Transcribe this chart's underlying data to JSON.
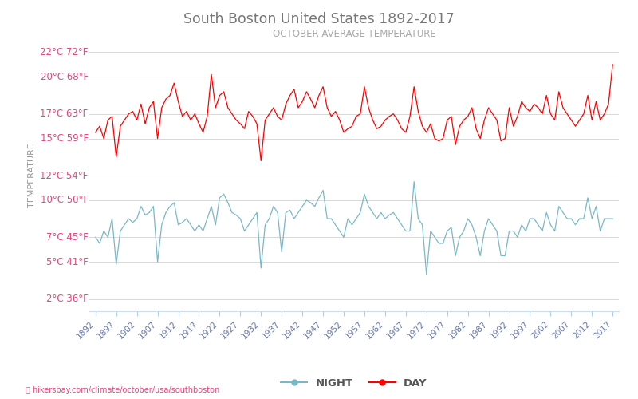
{
  "title": "South Boston United States 1892-2017",
  "subtitle": "OCTOBER AVERAGE TEMPERATURE",
  "ylabel": "TEMPERATURE",
  "url_text": "hikersbay.com/climate/october/usa/southboston",
  "legend_night": "NIGHT",
  "legend_day": "DAY",
  "color_day": "#ff0000",
  "color_night": "#7ab8c8",
  "color_title": "#777777",
  "color_subtitle": "#aaaaaa",
  "color_ytick": "#e8457a",
  "color_xtick": "#6677aa",
  "color_grid": "#d8d8d8",
  "color_ylabel": "#999999",
  "color_legend": "#555555",
  "color_url": "#e8457a",
  "background": "#ffffff",
  "years": [
    1892,
    1893,
    1894,
    1895,
    1896,
    1897,
    1898,
    1899,
    1900,
    1901,
    1902,
    1903,
    1904,
    1905,
    1906,
    1907,
    1908,
    1909,
    1910,
    1911,
    1912,
    1913,
    1914,
    1915,
    1916,
    1917,
    1918,
    1919,
    1920,
    1921,
    1922,
    1923,
    1924,
    1925,
    1926,
    1927,
    1928,
    1929,
    1930,
    1931,
    1932,
    1933,
    1934,
    1935,
    1936,
    1937,
    1938,
    1939,
    1940,
    1941,
    1942,
    1943,
    1944,
    1945,
    1946,
    1947,
    1948,
    1949,
    1950,
    1951,
    1952,
    1953,
    1954,
    1955,
    1956,
    1957,
    1958,
    1959,
    1960,
    1961,
    1962,
    1963,
    1964,
    1965,
    1966,
    1967,
    1968,
    1969,
    1970,
    1971,
    1972,
    1973,
    1974,
    1975,
    1976,
    1977,
    1978,
    1979,
    1980,
    1981,
    1982,
    1983,
    1984,
    1985,
    1986,
    1987,
    1988,
    1989,
    1990,
    1991,
    1992,
    1993,
    1994,
    1995,
    1996,
    1997,
    1998,
    1999,
    2000,
    2001,
    2002,
    2003,
    2004,
    2005,
    2006,
    2007,
    2008,
    2009,
    2010,
    2011,
    2012,
    2013,
    2014,
    2015,
    2016,
    2017
  ],
  "day_temps": [
    15.5,
    16.0,
    15.0,
    16.5,
    16.8,
    13.5,
    16.0,
    16.5,
    17.0,
    17.2,
    16.5,
    17.8,
    16.2,
    17.5,
    18.0,
    15.0,
    17.5,
    18.2,
    18.5,
    19.5,
    18.0,
    16.8,
    17.2,
    16.5,
    17.0,
    16.2,
    15.5,
    16.8,
    20.2,
    17.5,
    18.5,
    18.8,
    17.5,
    17.0,
    16.5,
    16.2,
    15.8,
    17.2,
    16.8,
    16.2,
    13.2,
    16.5,
    17.0,
    17.5,
    16.8,
    16.5,
    17.8,
    18.5,
    19.0,
    17.5,
    18.0,
    18.8,
    18.2,
    17.5,
    18.5,
    19.2,
    17.5,
    16.8,
    17.2,
    16.5,
    15.5,
    15.8,
    16.0,
    16.8,
    17.0,
    19.2,
    17.5,
    16.5,
    15.8,
    16.0,
    16.5,
    16.8,
    17.0,
    16.5,
    15.8,
    15.5,
    16.8,
    19.2,
    17.2,
    16.0,
    15.5,
    16.2,
    15.0,
    14.8,
    15.0,
    16.5,
    16.8,
    14.5,
    16.0,
    16.5,
    16.8,
    17.5,
    15.8,
    15.0,
    16.5,
    17.5,
    17.0,
    16.5,
    14.8,
    15.0,
    17.5,
    16.0,
    16.8,
    18.0,
    17.5,
    17.2,
    17.8,
    17.5,
    17.0,
    18.5,
    17.0,
    16.5,
    18.8,
    17.5,
    17.0,
    16.5,
    16.0,
    16.5,
    17.0,
    18.5,
    16.5,
    18.0,
    16.5,
    17.0,
    17.8,
    21.0
  ],
  "night_temps": [
    7.0,
    6.5,
    7.5,
    7.0,
    8.5,
    4.8,
    7.5,
    8.0,
    8.5,
    8.2,
    8.5,
    9.5,
    8.8,
    9.0,
    9.5,
    5.0,
    8.0,
    9.0,
    9.5,
    9.8,
    8.0,
    8.2,
    8.5,
    8.0,
    7.5,
    8.0,
    7.5,
    8.5,
    9.5,
    8.0,
    10.2,
    10.5,
    9.8,
    9.0,
    8.8,
    8.5,
    7.5,
    8.0,
    8.5,
    9.0,
    4.5,
    8.0,
    8.5,
    9.5,
    9.0,
    5.8,
    9.0,
    9.2,
    8.5,
    9.0,
    9.5,
    10.0,
    9.8,
    9.5,
    10.2,
    10.8,
    8.5,
    8.5,
    8.0,
    7.5,
    7.0,
    8.5,
    8.0,
    8.5,
    9.0,
    10.5,
    9.5,
    9.0,
    8.5,
    9.0,
    8.5,
    8.8,
    9.0,
    8.5,
    8.0,
    7.5,
    7.5,
    11.5,
    8.5,
    8.0,
    4.0,
    7.5,
    7.0,
    6.5,
    6.5,
    7.5,
    7.8,
    5.5,
    7.0,
    7.5,
    8.5,
    8.0,
    7.0,
    5.5,
    7.5,
    8.5,
    8.0,
    7.5,
    5.5,
    5.5,
    7.5,
    7.5,
    7.0,
    8.0,
    7.5,
    8.5,
    8.5,
    8.0,
    7.5,
    9.0,
    8.0,
    7.5,
    9.5,
    9.0,
    8.5,
    8.5,
    8.0,
    8.5,
    8.5,
    10.2,
    8.5,
    9.5,
    7.5,
    8.5,
    8.5,
    8.5
  ],
  "yticks_c": [
    2,
    5,
    7,
    10,
    12,
    15,
    17,
    20,
    22
  ],
  "yticks_f": [
    36,
    41,
    45,
    50,
    54,
    59,
    63,
    68,
    72
  ],
  "ylim": [
    1,
    23
  ],
  "xlim": [
    1890.5,
    2018.5
  ],
  "xtick_years": [
    1892,
    1897,
    1902,
    1907,
    1912,
    1917,
    1922,
    1927,
    1932,
    1937,
    1942,
    1947,
    1952,
    1957,
    1962,
    1967,
    1972,
    1977,
    1982,
    1987,
    1992,
    1997,
    2002,
    2007,
    2012,
    2017
  ]
}
